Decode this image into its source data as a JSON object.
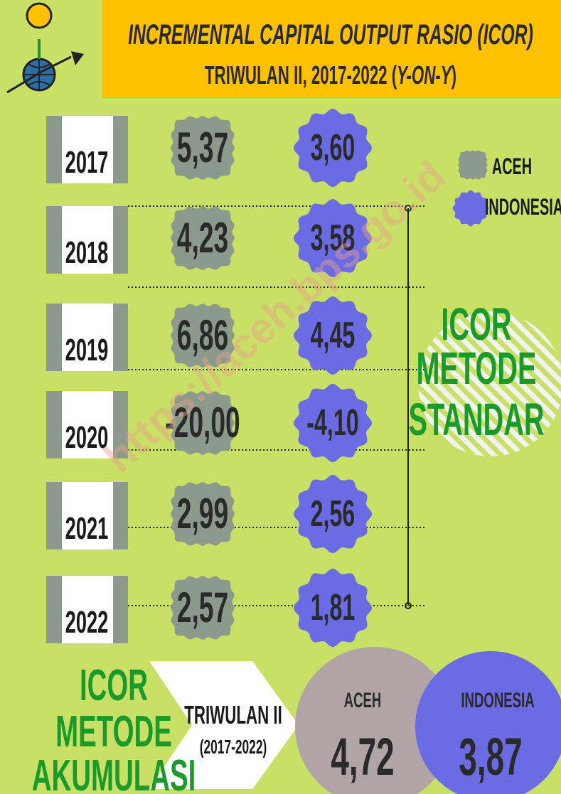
{
  "header": {
    "title": "INCREMENTAL CAPITAL OUTPUT  RASIO (ICOR)",
    "subtitle_prefix": "TRIWULAN II, 2017-2022 (",
    "subtitle_em": "Y-ON-Y",
    "subtitle_suffix": ")"
  },
  "watermark": "https://aceh.bps.go.id",
  "legend": [
    {
      "label": "ACEH"
    },
    {
      "label": "INDONESIA"
    }
  ],
  "rows": [
    {
      "year": "2017",
      "aceh": "5,37",
      "indonesia": "3,60"
    },
    {
      "year": "2018",
      "aceh": "4,23",
      "indonesia": "3,58"
    },
    {
      "year": "2019",
      "aceh": "6,86",
      "indonesia": "4,45"
    },
    {
      "year": "2020",
      "aceh": "-20,00",
      "indonesia": "-4,10"
    },
    {
      "year": "2021",
      "aceh": "2,99",
      "indonesia": "2,56"
    },
    {
      "year": "2022",
      "aceh": "2,57",
      "indonesia": "1,81"
    }
  ],
  "standard_label": [
    "ICOR",
    "METODE",
    "STANDAR"
  ],
  "accumulation": {
    "label": [
      "ICOR",
      "METODE",
      "AKUMULASI"
    ],
    "period": "TRIWULAN  II",
    "range": "(2017-2022)",
    "aceh_label": "ACEH",
    "aceh": "4,72",
    "indonesia_label": "INDONESIA",
    "indonesia": "3,87"
  }
}
